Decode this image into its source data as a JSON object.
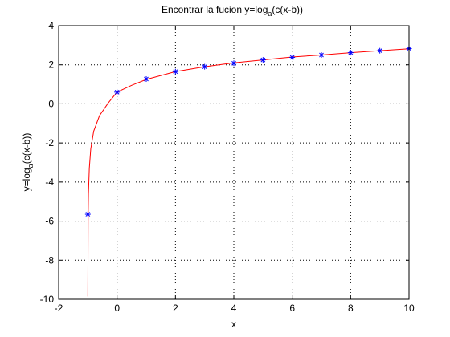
{
  "chart_data": {
    "type": "line",
    "title_main": "Encontrar la fucion y=log",
    "title_sub": "a",
    "title_tail": "(c(x-b))",
    "xlabel": "x",
    "ylabel_main": "y=log",
    "ylabel_sub": "a",
    "ylabel_tail": "(c(x-b))",
    "xlim": [
      -2,
      10
    ],
    "ylim": [
      -10,
      4
    ],
    "xticks": [
      -2,
      0,
      2,
      4,
      6,
      8,
      10
    ],
    "xtick_labels": [
      "-2",
      "0",
      "2",
      "4",
      "6",
      "8",
      "10"
    ],
    "yticks": [
      -10,
      -8,
      -6,
      -4,
      -2,
      0,
      2,
      4
    ],
    "ytick_labels": [
      "-10",
      "-8",
      "-6",
      "-4",
      "-2",
      "0",
      "2",
      "4"
    ],
    "grid": true,
    "colors": {
      "curve": "#ff0000",
      "markers": "#0000ff",
      "axes": "#000000",
      "grid": "#000000"
    },
    "series": [
      {
        "style": "line",
        "x": [
          -0.999,
          -0.99,
          -0.98,
          -0.95,
          -0.9,
          -0.8,
          -0.6,
          -0.3,
          0,
          0.5,
          1,
          2,
          3,
          4,
          5,
          6,
          7,
          8,
          9,
          10
        ],
        "y": [
          -9.85,
          -5.75,
          -4.6,
          -3.3,
          -2.3,
          -1.4,
          -0.6,
          0.05,
          0.6,
          0.95,
          1.25,
          1.65,
          1.9,
          2.1,
          2.25,
          2.4,
          2.5,
          2.62,
          2.72,
          2.82
        ]
      },
      {
        "style": "markers",
        "marker": "asterisk",
        "x": [
          -1,
          0,
          1,
          2,
          3,
          4,
          5,
          6,
          7,
          8,
          9,
          10
        ],
        "y": [
          -5.65,
          0.6,
          1.27,
          1.65,
          1.9,
          2.08,
          2.25,
          2.38,
          2.5,
          2.62,
          2.72,
          2.83
        ]
      }
    ]
  }
}
